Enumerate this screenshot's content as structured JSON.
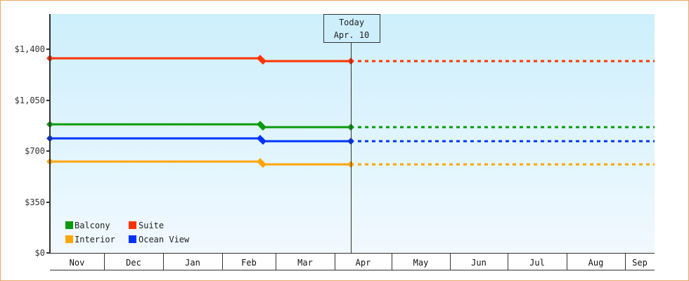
{
  "chart_data": {
    "type": "line",
    "title": "",
    "xlabel": "",
    "ylabel": "",
    "ylim": [
      0,
      1650
    ],
    "y_ticks": [
      {
        "value": 0,
        "label": "$0"
      },
      {
        "value": 350,
        "label": "$350"
      },
      {
        "value": 700,
        "label": "$700"
      },
      {
        "value": 1050,
        "label": "$1,050"
      },
      {
        "value": 1400,
        "label": "$1,400"
      }
    ],
    "categories": [
      "Nov",
      "Dec",
      "Jan",
      "Feb",
      "Mar",
      "Apr",
      "May",
      "Jun",
      "Jul",
      "Aug",
      "Sep"
    ],
    "grid": false,
    "legend_position": "bottom-left inside plot",
    "annotation": {
      "label_line1": "Today",
      "label_line2": "Apr. 10",
      "date": "Apr 10"
    },
    "series": [
      {
        "name": "Balcony",
        "color": "#0a9a0a",
        "points": [
          {
            "date": "Nov 1",
            "value": 883
          },
          {
            "date": "Feb 13",
            "value": 883
          },
          {
            "date": "Feb 14",
            "value": 864
          },
          {
            "date": "Apr 10",
            "value": 864
          }
        ],
        "projection": {
          "from": "Apr 10",
          "to": "Sep",
          "value": 864,
          "style": "dashed"
        }
      },
      {
        "name": "Suite",
        "color": "#ff3300",
        "points": [
          {
            "date": "Nov 1",
            "value": 1337
          },
          {
            "date": "Feb 13",
            "value": 1337
          },
          {
            "date": "Feb 14",
            "value": 1318
          },
          {
            "date": "Apr 10",
            "value": 1318
          }
        ],
        "projection": {
          "from": "Apr 10",
          "to": "Sep",
          "value": 1318,
          "style": "dashed"
        }
      },
      {
        "name": "Interior",
        "color": "#ffa500",
        "points": [
          {
            "date": "Nov 1",
            "value": 627
          },
          {
            "date": "Feb 13",
            "value": 627
          },
          {
            "date": "Feb 14",
            "value": 608
          },
          {
            "date": "Apr 10",
            "value": 608
          }
        ],
        "projection": {
          "from": "Apr 10",
          "to": "Sep",
          "value": 608,
          "style": "dashed"
        }
      },
      {
        "name": "Ocean View",
        "color": "#0033ff",
        "points": [
          {
            "date": "Nov 1",
            "value": 787
          },
          {
            "date": "Feb 13",
            "value": 787
          },
          {
            "date": "Feb 14",
            "value": 768
          },
          {
            "date": "Apr 10",
            "value": 768
          }
        ],
        "projection": {
          "from": "Apr 10",
          "to": "Sep",
          "value": 768,
          "style": "dashed"
        }
      }
    ]
  },
  "colors": {
    "frame_border": "#e6a766",
    "plot_top": "#cdeffc",
    "plot_bottom": "#f1f9fe",
    "axis": "#333333"
  },
  "legend": {
    "items": [
      {
        "label": "Balcony",
        "color": "#0a9a0a"
      },
      {
        "label": "Suite",
        "color": "#ff3300"
      },
      {
        "label": "Interior",
        "color": "#ffa500"
      },
      {
        "label": "Ocean View",
        "color": "#0033ff"
      }
    ]
  },
  "today": {
    "line1": "Today",
    "line2": "Apr. 10"
  }
}
